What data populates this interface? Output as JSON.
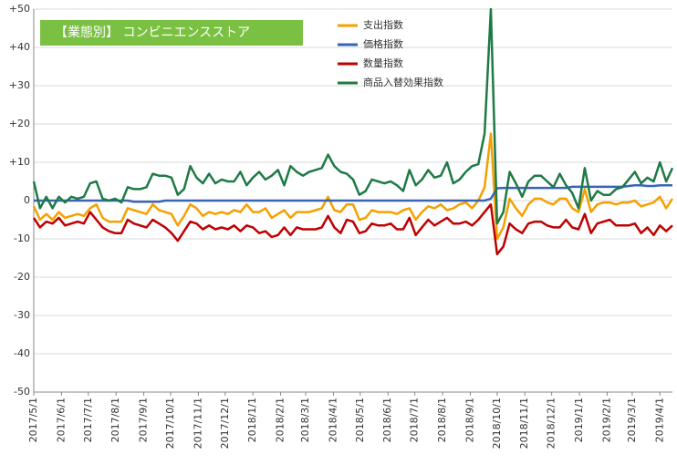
{
  "chart_data": {
    "type": "line",
    "title": "【業態別】 コンビニエンスストア",
    "x": [
      "2017/5/1",
      "2017/5/8",
      "2017/5/15",
      "2017/5/22",
      "2017/5/29",
      "2017/6/5",
      "2017/6/12",
      "2017/6/19",
      "2017/6/26",
      "2017/7/3",
      "2017/7/10",
      "2017/7/17",
      "2017/7/24",
      "2017/7/31",
      "2017/8/7",
      "2017/8/14",
      "2017/8/21",
      "2017/8/28",
      "2017/9/4",
      "2017/9/11",
      "2017/9/18",
      "2017/9/25",
      "2017/10/2",
      "2017/10/9",
      "2017/10/16",
      "2017/10/23",
      "2017/10/30",
      "2017/11/6",
      "2017/11/13",
      "2017/11/20",
      "2017/11/27",
      "2017/12/4",
      "2017/12/11",
      "2017/12/18",
      "2017/12/25",
      "2018/1/1",
      "2018/1/8",
      "2018/1/15",
      "2018/1/22",
      "2018/1/29",
      "2018/2/5",
      "2018/2/12",
      "2018/2/19",
      "2018/2/26",
      "2018/3/5",
      "2018/3/12",
      "2018/3/19",
      "2018/3/26",
      "2018/4/2",
      "2018/4/9",
      "2018/4/16",
      "2018/4/23",
      "2018/4/30",
      "2018/5/7",
      "2018/5/14",
      "2018/5/21",
      "2018/5/28",
      "2018/6/4",
      "2018/6/11",
      "2018/6/18",
      "2018/6/25",
      "2018/7/2",
      "2018/7/9",
      "2018/7/16",
      "2018/7/23",
      "2018/7/30",
      "2018/8/6",
      "2018/8/13",
      "2018/8/20",
      "2018/8/27",
      "2018/9/3",
      "2018/9/10",
      "2018/9/17",
      "2018/9/24",
      "2018/10/1",
      "2018/10/8",
      "2018/10/15",
      "2018/10/22",
      "2018/10/29",
      "2018/11/5",
      "2018/11/12",
      "2018/11/19",
      "2018/11/26",
      "2018/12/3",
      "2018/12/10",
      "2018/12/17",
      "2018/12/24",
      "2018/12/31",
      "2019/1/7",
      "2019/1/14",
      "2019/1/21",
      "2019/1/28",
      "2019/2/4",
      "2019/2/11",
      "2019/2/18",
      "2019/2/25",
      "2019/3/4",
      "2019/3/11",
      "2019/3/18",
      "2019/3/25",
      "2019/4/1",
      "2019/4/8",
      "2019/4/15"
    ],
    "series": [
      {
        "name": "支出指数",
        "color": "#f5a000",
        "values": [
          -1.5,
          -5,
          -3.5,
          -5,
          -3,
          -4.5,
          -4,
          -3.5,
          -4,
          -2,
          -1,
          -4.5,
          -5.5,
          -5.5,
          -5.5,
          -2,
          -2.5,
          -3,
          -3.5,
          -1,
          -2.5,
          -3,
          -3.5,
          -6.5,
          -4,
          -1,
          -2,
          -4,
          -3,
          -3.5,
          -3,
          -3.5,
          -2.5,
          -3,
          -1,
          -3,
          -3,
          -2,
          -4.5,
          -3.5,
          -2.5,
          -4.5,
          -3,
          -3,
          -3,
          -2.5,
          -2,
          1,
          -2.5,
          -3,
          -1,
          -1,
          -5,
          -4.5,
          -2.5,
          -3,
          -3,
          -3,
          -3.5,
          -2.5,
          -2,
          -5,
          -3,
          -1.5,
          -2,
          -1,
          -2.5,
          -2,
          -1,
          -0.5,
          -2,
          0,
          3.5,
          17.5,
          -10,
          -7,
          0.5,
          -2,
          -4,
          -1,
          0.5,
          0.5,
          -0.5,
          -1,
          0.5,
          0.5,
          -2,
          -3,
          3,
          -3,
          -1,
          -0.5,
          -0.5,
          -1,
          -0.5,
          -0.5,
          0,
          -1.5,
          -1,
          -0.5,
          1,
          -2,
          0.5
        ]
      },
      {
        "name": "価格指数",
        "color": "#3a64b4",
        "values": [
          0,
          0,
          0,
          0,
          0,
          0,
          0,
          0,
          0,
          0,
          0,
          0,
          0,
          0,
          0,
          0,
          -0.3,
          -0.3,
          -0.3,
          -0.3,
          -0.3,
          0,
          0,
          0,
          0,
          0,
          0,
          0,
          0,
          0,
          0,
          0,
          0,
          0,
          0,
          0,
          0,
          0,
          0,
          0,
          0,
          0,
          0,
          0,
          0,
          0,
          0,
          0,
          0,
          0,
          0,
          0,
          0,
          0,
          0,
          0,
          0,
          0,
          0,
          0,
          0,
          0,
          0,
          0,
          0,
          0,
          0,
          0,
          0,
          0,
          0,
          0,
          0,
          0.5,
          3.2,
          3.3,
          3.3,
          3.3,
          3.3,
          3.3,
          3.3,
          3.3,
          3.3,
          3.3,
          3.3,
          3.3,
          3.6,
          3.6,
          3.6,
          3.6,
          3.6,
          3.6,
          3.6,
          3.6,
          3.6,
          3.8,
          4,
          4,
          3.8,
          3.8,
          4,
          4,
          4
        ]
      },
      {
        "name": "数量指数",
        "color": "#c00000",
        "values": [
          -4.5,
          -7,
          -5.5,
          -6,
          -4.5,
          -6.5,
          -6,
          -5.5,
          -6,
          -3,
          -5,
          -7,
          -8,
          -8.5,
          -8.5,
          -5,
          -6,
          -6.5,
          -7,
          -5,
          -6,
          -7,
          -8.5,
          -10.5,
          -8,
          -5.5,
          -6,
          -7.5,
          -6.5,
          -7.5,
          -7,
          -7.5,
          -6.5,
          -8,
          -6.5,
          -7,
          -8.5,
          -8,
          -9.5,
          -9,
          -7,
          -9,
          -7,
          -7.5,
          -7.5,
          -7.5,
          -7,
          -4,
          -7,
          -8.5,
          -5,
          -5.5,
          -8.5,
          -8,
          -6,
          -6.5,
          -6.5,
          -6,
          -7.5,
          -7.5,
          -4.5,
          -9,
          -7,
          -5,
          -6.5,
          -5.5,
          -4.5,
          -6,
          -6,
          -5.5,
          -6.5,
          -5,
          -3,
          -1,
          -14,
          -12,
          -6,
          -7.5,
          -8.5,
          -6,
          -5.5,
          -5.5,
          -6.5,
          -7,
          -7,
          -5,
          -7,
          -7.5,
          -3.5,
          -8.5,
          -6,
          -5.5,
          -5,
          -6.5,
          -6.5,
          -6.5,
          -6,
          -8.5,
          -7,
          -9,
          -6.5,
          -8,
          -6.5
        ]
      },
      {
        "name": "商品入替効果指数",
        "color": "#1e7a46",
        "values": [
          5,
          -2,
          1,
          -2,
          1,
          -0.5,
          1,
          0.5,
          1,
          4.5,
          5,
          0.5,
          0,
          0.5,
          -0.5,
          3.5,
          3,
          3,
          3.5,
          7,
          6.5,
          6.5,
          6,
          1.5,
          3,
          9,
          6,
          4.5,
          7,
          4.5,
          5.5,
          5,
          5,
          7.5,
          4,
          6,
          7.5,
          5.5,
          6.5,
          8,
          4,
          9,
          7.5,
          6.5,
          7.5,
          8,
          8.5,
          12,
          9,
          7.5,
          7,
          5.5,
          1.5,
          2.5,
          5.5,
          5,
          4.5,
          5,
          4,
          2.5,
          8,
          4,
          5.5,
          8,
          6,
          6.5,
          10,
          4.5,
          5.5,
          7.5,
          9,
          9.5,
          17.5,
          50,
          -6,
          -3,
          7.5,
          4.5,
          1,
          5,
          6.5,
          6.5,
          5,
          3.5,
          7,
          4,
          2,
          -2,
          8.5,
          0,
          2.5,
          1.5,
          1.5,
          3,
          3.5,
          5.5,
          7.5,
          4.5,
          6,
          5,
          10,
          5,
          8.5
        ]
      }
    ],
    "xlim": [
      "2017/5/1",
      "2019/4/15"
    ],
    "xticks": [
      "2017/5/1",
      "2017/6/1",
      "2017/7/1",
      "2017/8/1",
      "2017/9/1",
      "2017/10/1",
      "2017/11/1",
      "2017/12/1",
      "2018/1/1",
      "2018/2/1",
      "2018/3/1",
      "2018/4/1",
      "2018/5/1",
      "2018/6/1",
      "2018/7/1",
      "2018/8/1",
      "2018/9/1",
      "2018/10/1",
      "2018/11/1",
      "2018/12/1",
      "2019/1/1",
      "2019/2/1",
      "2019/3/1",
      "2019/4/1"
    ],
    "ylim": [
      -50,
      50
    ],
    "yticks": [
      -50,
      -40,
      -30,
      -20,
      -10,
      0,
      {
        "value": 10,
        "label": "+10"
      },
      {
        "value": 20,
        "label": "+20"
      },
      {
        "value": 30,
        "label": "+30"
      },
      {
        "value": 40,
        "label": "+40"
      },
      {
        "value": 50,
        "label": "+50"
      }
    ],
    "grid": true
  }
}
